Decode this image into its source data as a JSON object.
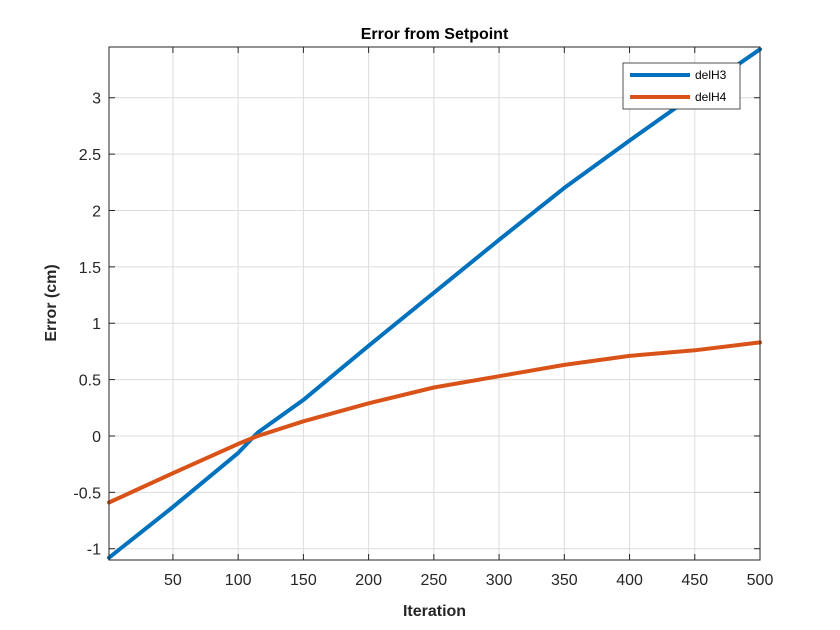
{
  "chart_data": {
    "type": "line",
    "title": "Error from Setpoint",
    "xlabel": "Iteration",
    "ylabel": "Error (cm)",
    "xlim": [
      1,
      500
    ],
    "ylim": [
      -1.1,
      3.45
    ],
    "xticks": [
      50,
      100,
      150,
      200,
      250,
      300,
      350,
      400,
      450,
      500
    ],
    "yticks": [
      -1,
      -0.5,
      0,
      0.5,
      1,
      1.5,
      2,
      2.5,
      3
    ],
    "ytick_labels": [
      "-1",
      "-0.5",
      "0",
      "0.5",
      "1",
      "1.5",
      "2",
      "2.5",
      "3"
    ],
    "grid": true,
    "legend_position": "top-right",
    "series": [
      {
        "name": "delH3",
        "color": "#0072BD",
        "x": [
          1,
          50,
          100,
          115,
          150,
          200,
          250,
          300,
          350,
          400,
          450,
          500
        ],
        "y": [
          -1.08,
          -0.63,
          -0.15,
          0.03,
          0.32,
          0.8,
          1.27,
          1.74,
          2.2,
          2.62,
          3.03,
          3.43
        ]
      },
      {
        "name": "delH4",
        "color": "#D95319",
        "x": [
          1,
          50,
          100,
          115,
          150,
          200,
          250,
          300,
          350,
          400,
          450,
          500
        ],
        "y": [
          -0.59,
          -0.33,
          -0.07,
          0.0,
          0.13,
          0.29,
          0.43,
          0.53,
          0.63,
          0.71,
          0.76,
          0.83
        ]
      }
    ]
  }
}
